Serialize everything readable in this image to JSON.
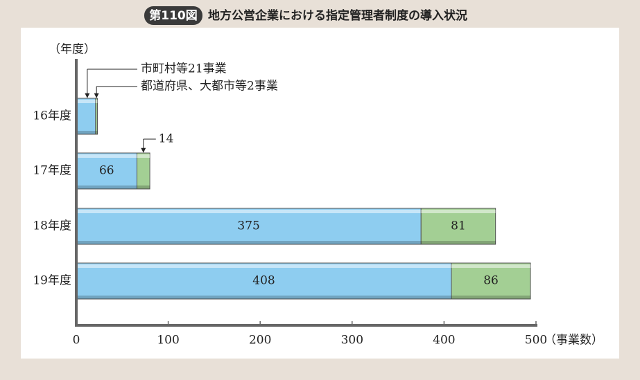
{
  "chart_data": {
    "type": "stacked-bar-horizontal",
    "badge": "第110図",
    "title": "地方公営企業における指定管理者制度の導入状況",
    "y_label": "（年度）",
    "x_label": "（事業数）",
    "categories": [
      "16年度",
      "17年度",
      "18年度",
      "19年度"
    ],
    "series": [
      {
        "color": "#8ecdf0",
        "values": [
          21,
          66,
          375,
          408
        ],
        "value_labels": [
          null,
          "66",
          "375",
          "408"
        ]
      },
      {
        "color": "#a3cf94",
        "values": [
          2,
          14,
          81,
          86
        ],
        "value_labels": [
          null,
          "14",
          "81",
          "86"
        ]
      }
    ],
    "annotations": [
      {
        "text": "市町村等21事業",
        "series": 0,
        "category": 0
      },
      {
        "text": "都道府県、大都市等2事業",
        "series": 1,
        "category": 0
      }
    ],
    "xlim": [
      0,
      500
    ],
    "xticks": [
      0,
      100,
      200,
      300,
      400,
      500
    ]
  }
}
